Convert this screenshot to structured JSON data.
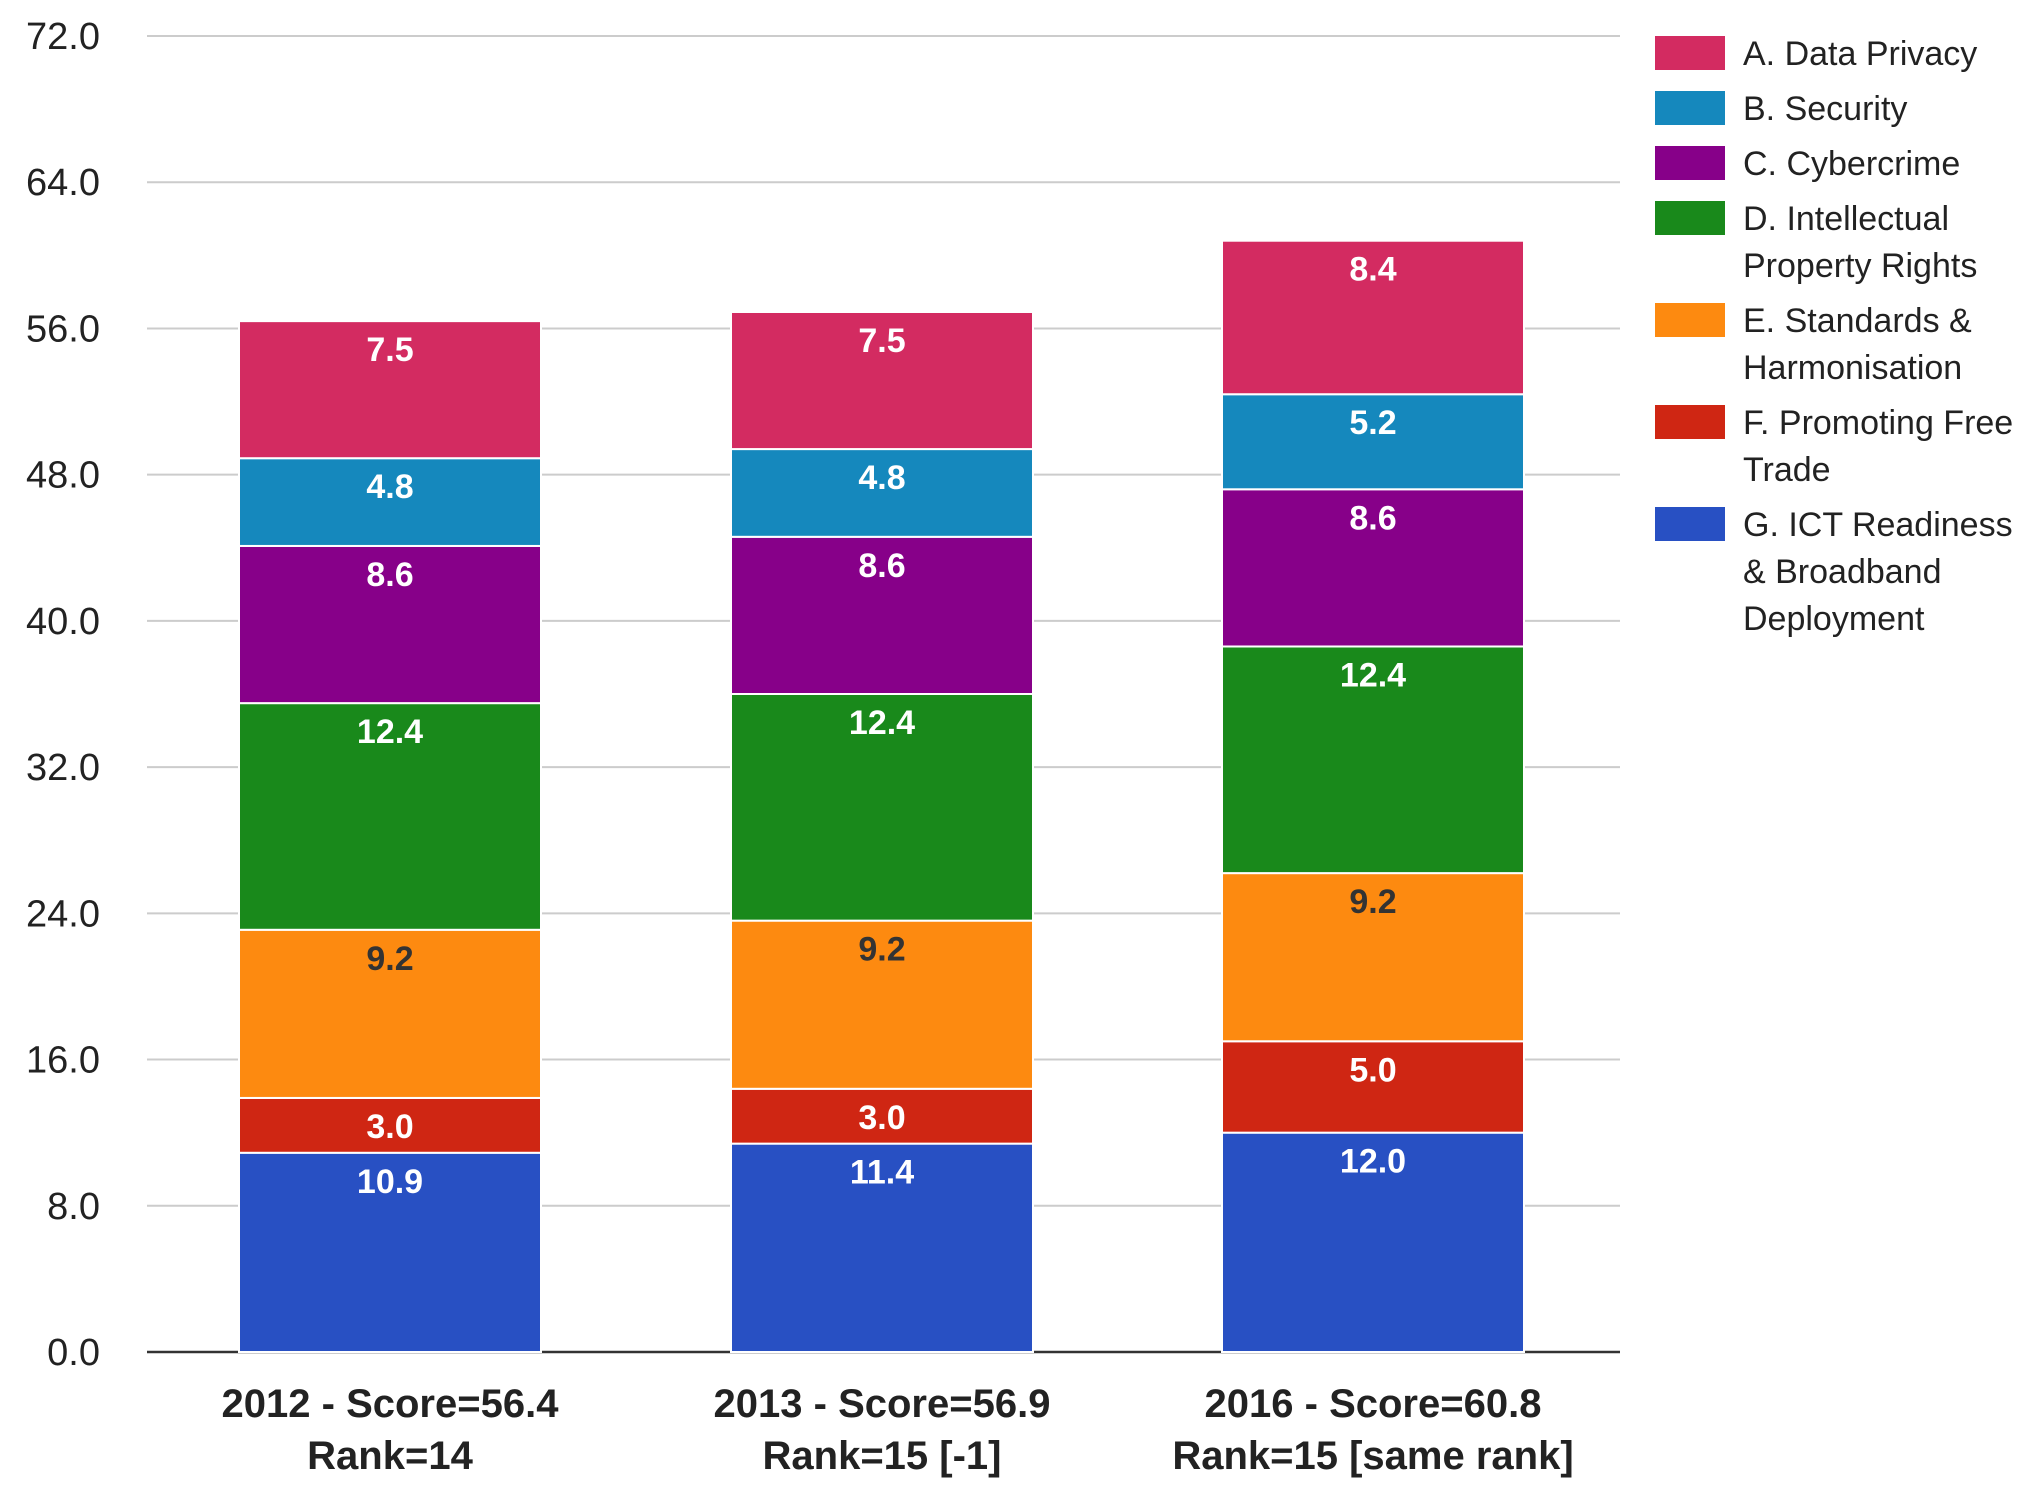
{
  "chart_data": {
    "type": "bar",
    "stacked": true,
    "categories": [
      [
        "2012 - Score=56.4",
        "Rank=14"
      ],
      [
        "2013 - Score=56.9",
        "Rank=15 [-1]"
      ],
      [
        "2016 - Score=60.8",
        "Rank=15 [same rank]"
      ]
    ],
    "y_ticks": [
      "0.0",
      "8.0",
      "16.0",
      "24.0",
      "32.0",
      "40.0",
      "48.0",
      "56.0",
      "64.0",
      "72.0"
    ],
    "ylim": [
      0,
      72
    ],
    "grid": true,
    "legend_position": "right",
    "series": [
      {
        "name": [
          "G. ICT Readiness",
          "& Broadband",
          "Deployment"
        ],
        "color": "#2850c3",
        "label_color": "#ffffff",
        "values": [
          10.9,
          11.4,
          12.0
        ],
        "labels": [
          "10.9",
          "11.4",
          "12.0"
        ]
      },
      {
        "name": [
          "F. Promoting Free",
          "Trade"
        ],
        "color": "#cf2613",
        "label_color": "#ffffff",
        "values": [
          3.0,
          3.0,
          5.0
        ],
        "labels": [
          "3.0",
          "3.0",
          "5.0"
        ]
      },
      {
        "name": [
          "E. Standards &",
          "Harmonisation"
        ],
        "color": "#fd8a10",
        "label_color": "#333333",
        "values": [
          9.2,
          9.2,
          9.2
        ],
        "labels": [
          "9.2",
          "9.2",
          "9.2"
        ]
      },
      {
        "name": [
          "D. Intellectual",
          "Property Rights"
        ],
        "color": "#19891b",
        "label_color": "#ffffff",
        "values": [
          12.4,
          12.4,
          12.4
        ],
        "labels": [
          "12.4",
          "12.4",
          "12.4"
        ]
      },
      {
        "name": [
          "C. Cybercrime"
        ],
        "color": "#870089",
        "label_color": "#ffffff",
        "values": [
          8.6,
          8.6,
          8.6
        ],
        "labels": [
          "8.6",
          "8.6",
          "8.6"
        ]
      },
      {
        "name": [
          "B. Security"
        ],
        "color": "#1588bd",
        "label_color": "#ffffff",
        "values": [
          4.8,
          4.8,
          5.2
        ],
        "labels": [
          "4.8",
          "4.8",
          "5.2"
        ]
      },
      {
        "name": [
          "A. Data Privacy"
        ],
        "color": "#d32b61",
        "label_color": "#ffffff",
        "values": [
          7.5,
          7.5,
          8.4
        ],
        "labels": [
          "7.5",
          "7.5",
          "8.4"
        ]
      }
    ]
  }
}
